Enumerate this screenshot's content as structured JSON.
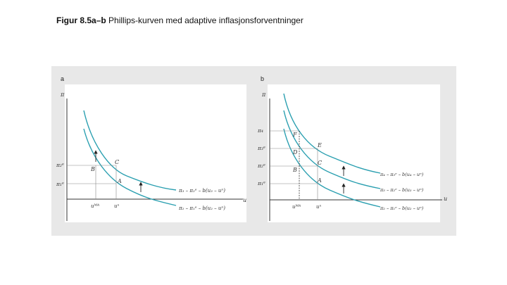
{
  "figure": {
    "title_bold": "Figur 8.5a–b",
    "title_rest": "Phillips-kurven med adaptive inflasjonsforventninger"
  },
  "colors": {
    "curve": "#2a9fb0",
    "axis": "#333333",
    "guide": "#888888",
    "panel_background": "#e8e8e8"
  },
  "chart_data": [
    {
      "type": "line",
      "panel_label": "a",
      "y_axis_label": "π",
      "x_axis_label": "u",
      "y_ticks": [
        "π₂ᵉ",
        "π₁ᵉ"
      ],
      "x_ticks": [
        "uᴹᴬ",
        "uⁿ"
      ],
      "point_labels": [
        "C",
        "B",
        "A"
      ],
      "arrow_count": 2,
      "series": [
        {
          "label_rhs": "π₃ – π₂ᵉ – b(u₃ – uⁿ)"
        },
        {
          "label_rhs": "π₂ – π₁ᵉ – b(u₂ – uⁿ)"
        }
      ]
    },
    {
      "type": "line",
      "panel_label": "b",
      "y_axis_label": "π",
      "x_axis_label": "u",
      "y_ticks": [
        "π₄",
        "π₃ᵉ",
        "π₂ᵉ",
        "π₁ᵉ"
      ],
      "x_ticks": [
        "uᴹᴬ",
        "uⁿ"
      ],
      "point_labels": [
        "F",
        "E",
        "D",
        "C",
        "B",
        "A"
      ],
      "arrow_count": 2,
      "series": [
        {
          "label_rhs": "π₄ – π₃ᵉ – b(u₄ – uⁿ)"
        },
        {
          "label_rhs": "π₃ – π₂ᵉ – b(u₃ – uⁿ)"
        },
        {
          "label_rhs": "π₂ – π₁ᵉ – b(u₂ – uⁿ)"
        }
      ]
    }
  ]
}
